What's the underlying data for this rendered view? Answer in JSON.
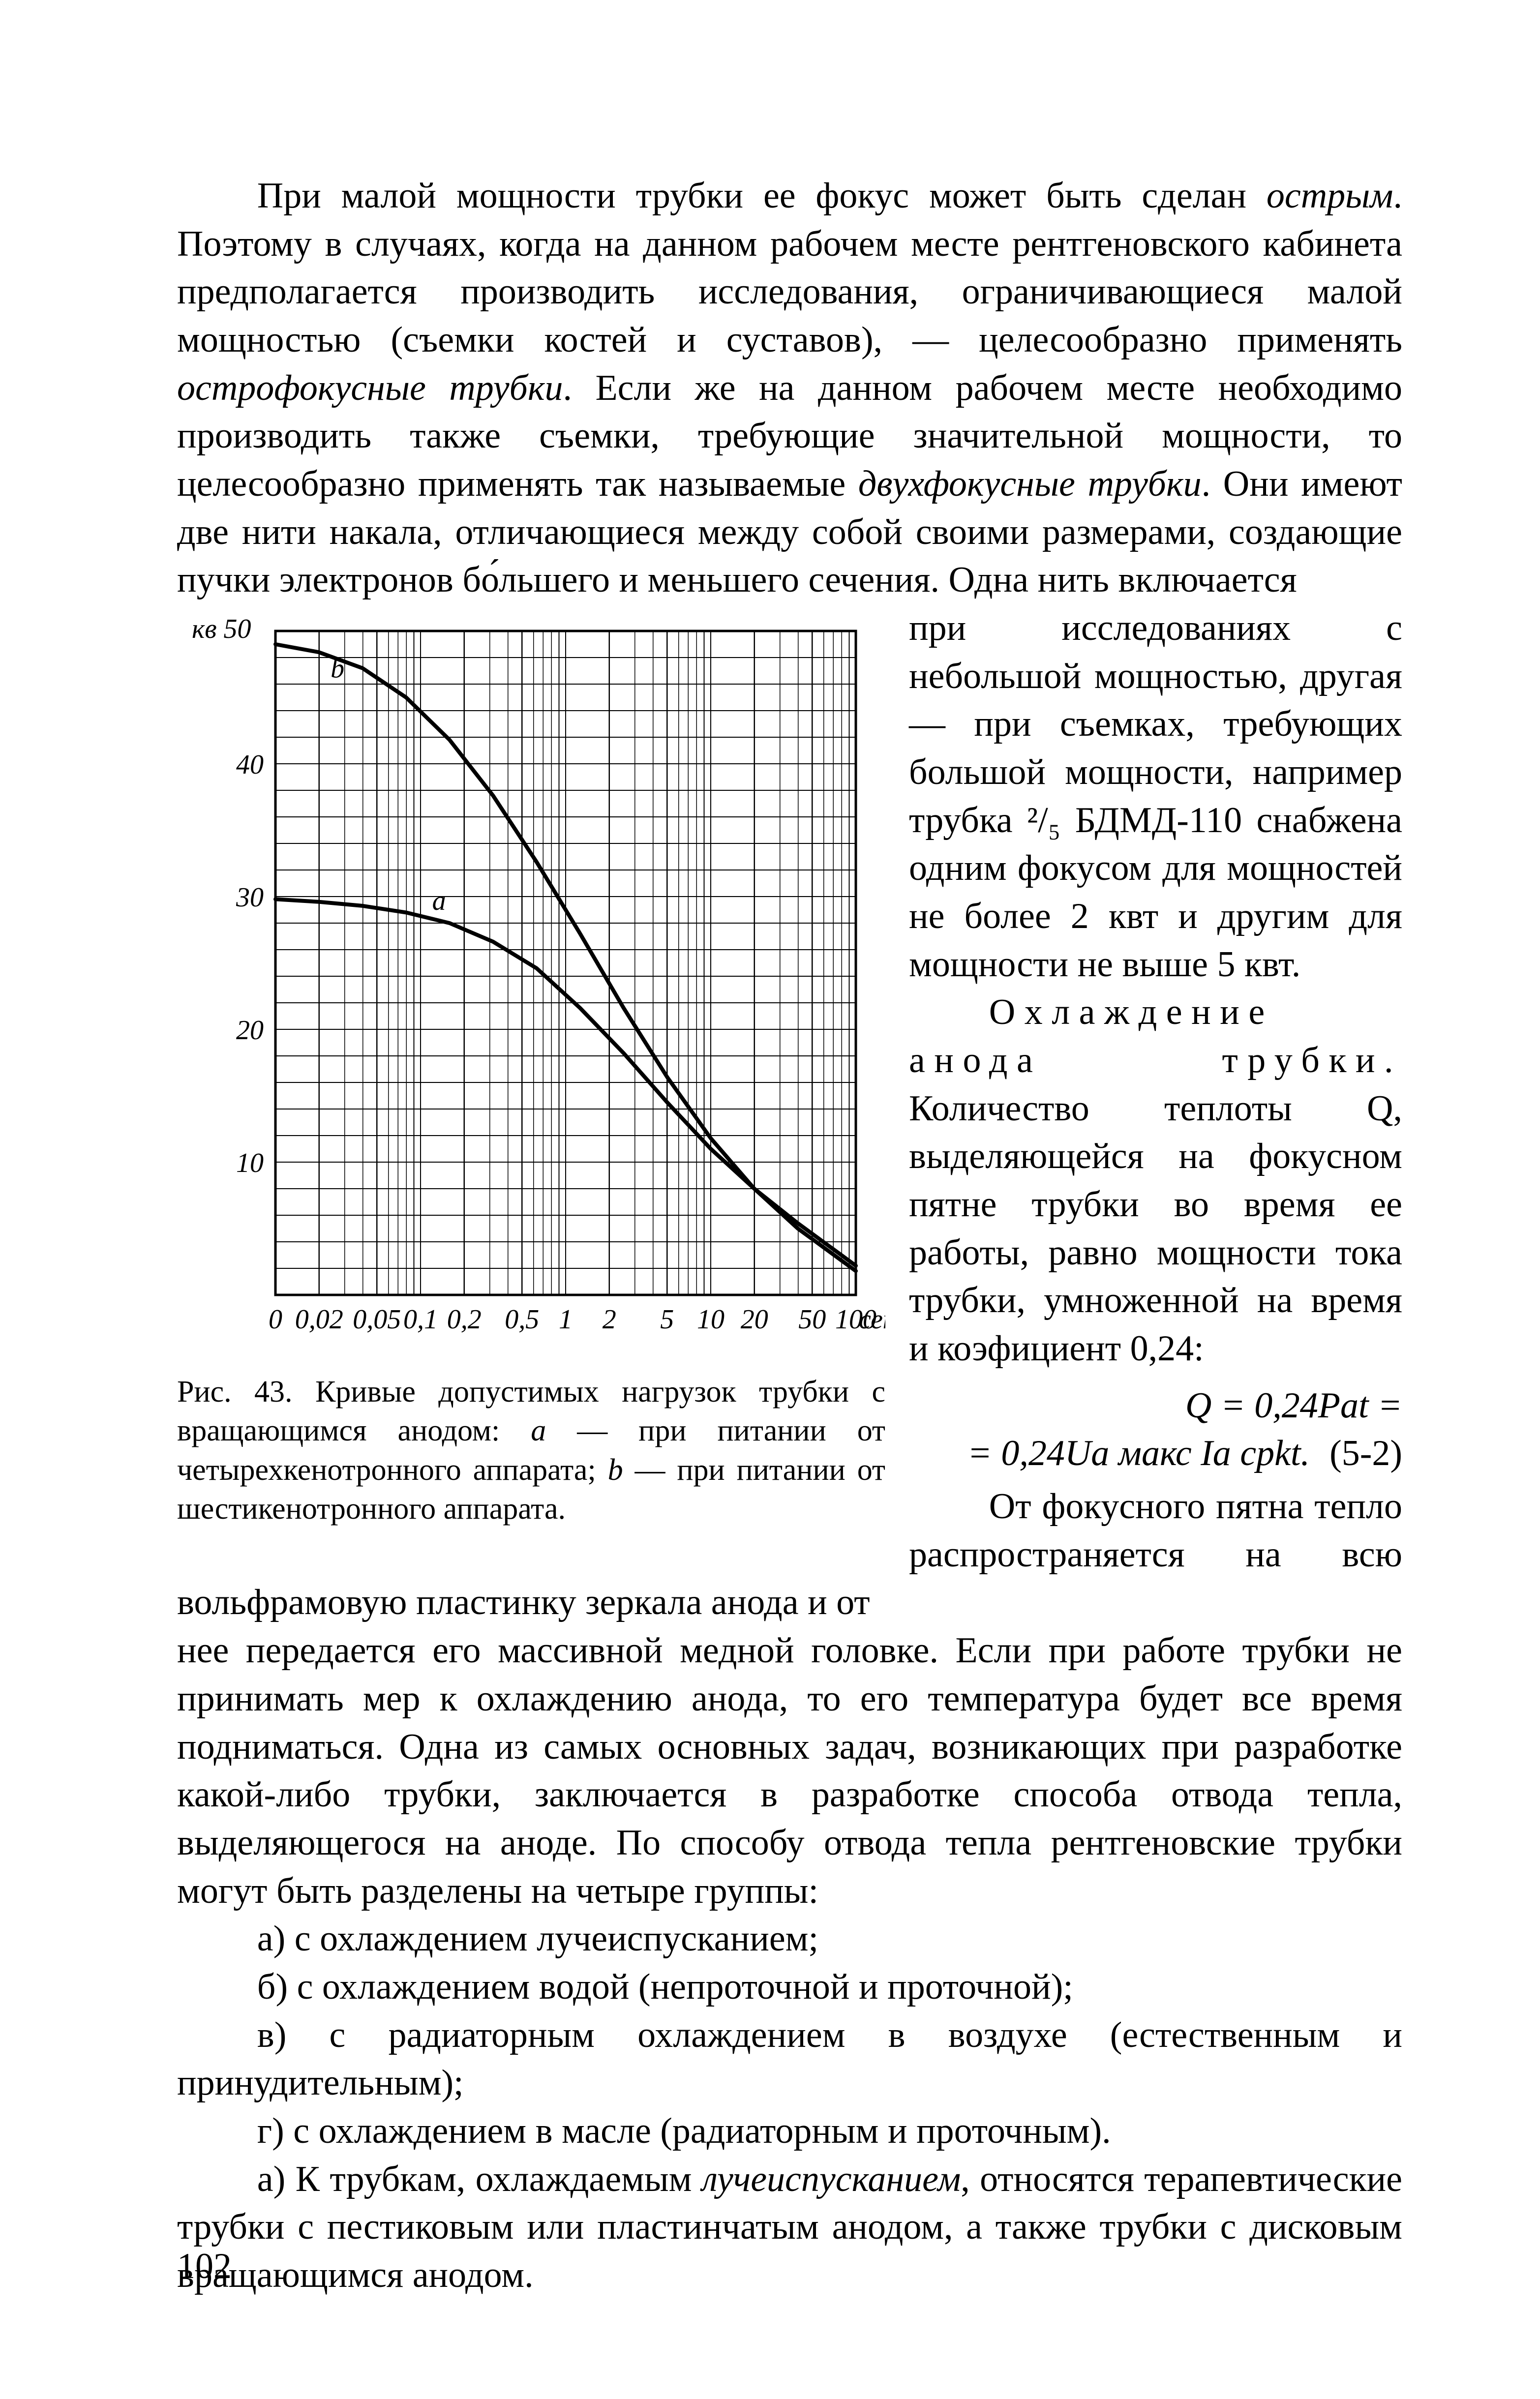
{
  "page_number": "102",
  "intro_paragraph": "При малой мощности трубки ее фокус может быть сделан острым. Поэтому в случаях, когда на данном рабочем месте рентгеновского кабинета предполагается производить исследования, ограничивающиеся малой мощностью (съемки костей и суставов), — целесообразно применять острофокусные трубки. Если же на данном рабочем месте необходимо производить также съемки, требующие значительной мощности, то целесообразно применять так называемые двухфокусные трубки. Они имеют две нити накала, отличающиеся между собой своими размерами, создающие пучки электронов бо́льшего и меньшего сечения. Одна нить включается",
  "right_col": {
    "p1": "при исследованиях с небольшой мощностью, другая — при съемках, требующих большой мощности, например трубка ²/₅ БДМД-110 снабжена одним фокусом для мощностей не более 2 квт и другим для мощности не выше 5 квт.",
    "p2_lead": "Охлаждение анода трубки.",
    "p2_rest": " Количество теплоты Q, выделяющейся на фокусном пятне трубки во время ее работы, равно мощности тока трубки, умноженной на время и коэфициент 0,24:",
    "eq_line1": "Q = 0,24Pаt =",
    "eq_line2": "= 0,24Uа макс Iа срkt.",
    "eq_num": "(5-2)",
    "p3": "От фокусного пятна тепло распространяется на всю вольфрамовую пластинку зеркала анода и от"
  },
  "chart": {
    "type": "line",
    "y_axis_label": "кв 50",
    "x_axis_label_right": "сек",
    "x_ticks": [
      "0",
      "0,02",
      "0,05",
      "0,1",
      "0,2",
      "0,5",
      "1",
      "2",
      "5",
      "10",
      "20",
      "50",
      "100"
    ],
    "y_ticks": [
      "10",
      "20",
      "30",
      "40"
    ],
    "y_top": "50",
    "xlim_log": [
      -2,
      2
    ],
    "ylim": [
      0,
      50
    ],
    "series": {
      "a": {
        "label": "а",
        "label_xy": [
          -0.92,
          29
        ],
        "points": [
          [
            -2,
            29.8
          ],
          [
            -1.7,
            29.6
          ],
          [
            -1.4,
            29.3
          ],
          [
            -1.1,
            28.8
          ],
          [
            -0.8,
            28.0
          ],
          [
            -0.5,
            26.6
          ],
          [
            -0.2,
            24.6
          ],
          [
            0.1,
            21.6
          ],
          [
            0.4,
            18.2
          ],
          [
            0.7,
            14.5
          ],
          [
            1.0,
            11.0
          ],
          [
            1.3,
            8.0
          ],
          [
            1.6,
            5.4
          ],
          [
            1.85,
            3.4
          ],
          [
            2.0,
            2.2
          ]
        ]
      },
      "b": {
        "label": "b",
        "label_xy": [
          -1.62,
          46.5
        ],
        "points": [
          [
            -2,
            49.0
          ],
          [
            -1.7,
            48.4
          ],
          [
            -1.4,
            47.2
          ],
          [
            -1.1,
            45.0
          ],
          [
            -0.8,
            41.8
          ],
          [
            -0.5,
            37.6
          ],
          [
            -0.2,
            32.6
          ],
          [
            0.1,
            27.2
          ],
          [
            0.4,
            21.6
          ],
          [
            0.7,
            16.4
          ],
          [
            1.0,
            11.8
          ],
          [
            1.3,
            8.0
          ],
          [
            1.6,
            5.0
          ],
          [
            1.85,
            3.0
          ],
          [
            2.0,
            1.8
          ]
        ]
      }
    },
    "colors": {
      "background": "#ffffff",
      "grid": "#000000",
      "curve": "#000000",
      "text": "#000000"
    },
    "line_width": 8,
    "grid_width_major": 2.4,
    "grid_width_minor": 1.6,
    "caption": "Рис. 43. Кривые допустимых нагрузок трубки с вращающимся анодом: а — при питании от четырехкенотронного аппарата; b — при питании от шестикенотронного аппарата."
  },
  "after": {
    "p4": "нее передается его массивной медной головке. Если при работе трубки не принимать мер к охлаждению анода, то его температура будет все время подниматься. Одна из самых основных задач, возникающих при разработке какой-либо трубки, заключается в разработке способа отвода тепла, выделяющегося на аноде. По способу отвода тепла рентгеновские трубки могут быть разделены на четыре группы:",
    "li_a": "а) с охлаждением лучеиспусканием;",
    "li_b": "б) с охлаждением водой (непроточной и проточной);",
    "li_v": "в) с радиаторным охлаждением в воздухе (естественным и принудительным);",
    "li_g": "г) с охлаждением в масле (радиаторным и проточным).",
    "p5": "а) К трубкам, охлаждаемым лучеиспусканием, относятся терапевтические трубки с пестиковым или пластинчатым анодом, а также трубки с дисковым вращающимся анодом."
  }
}
